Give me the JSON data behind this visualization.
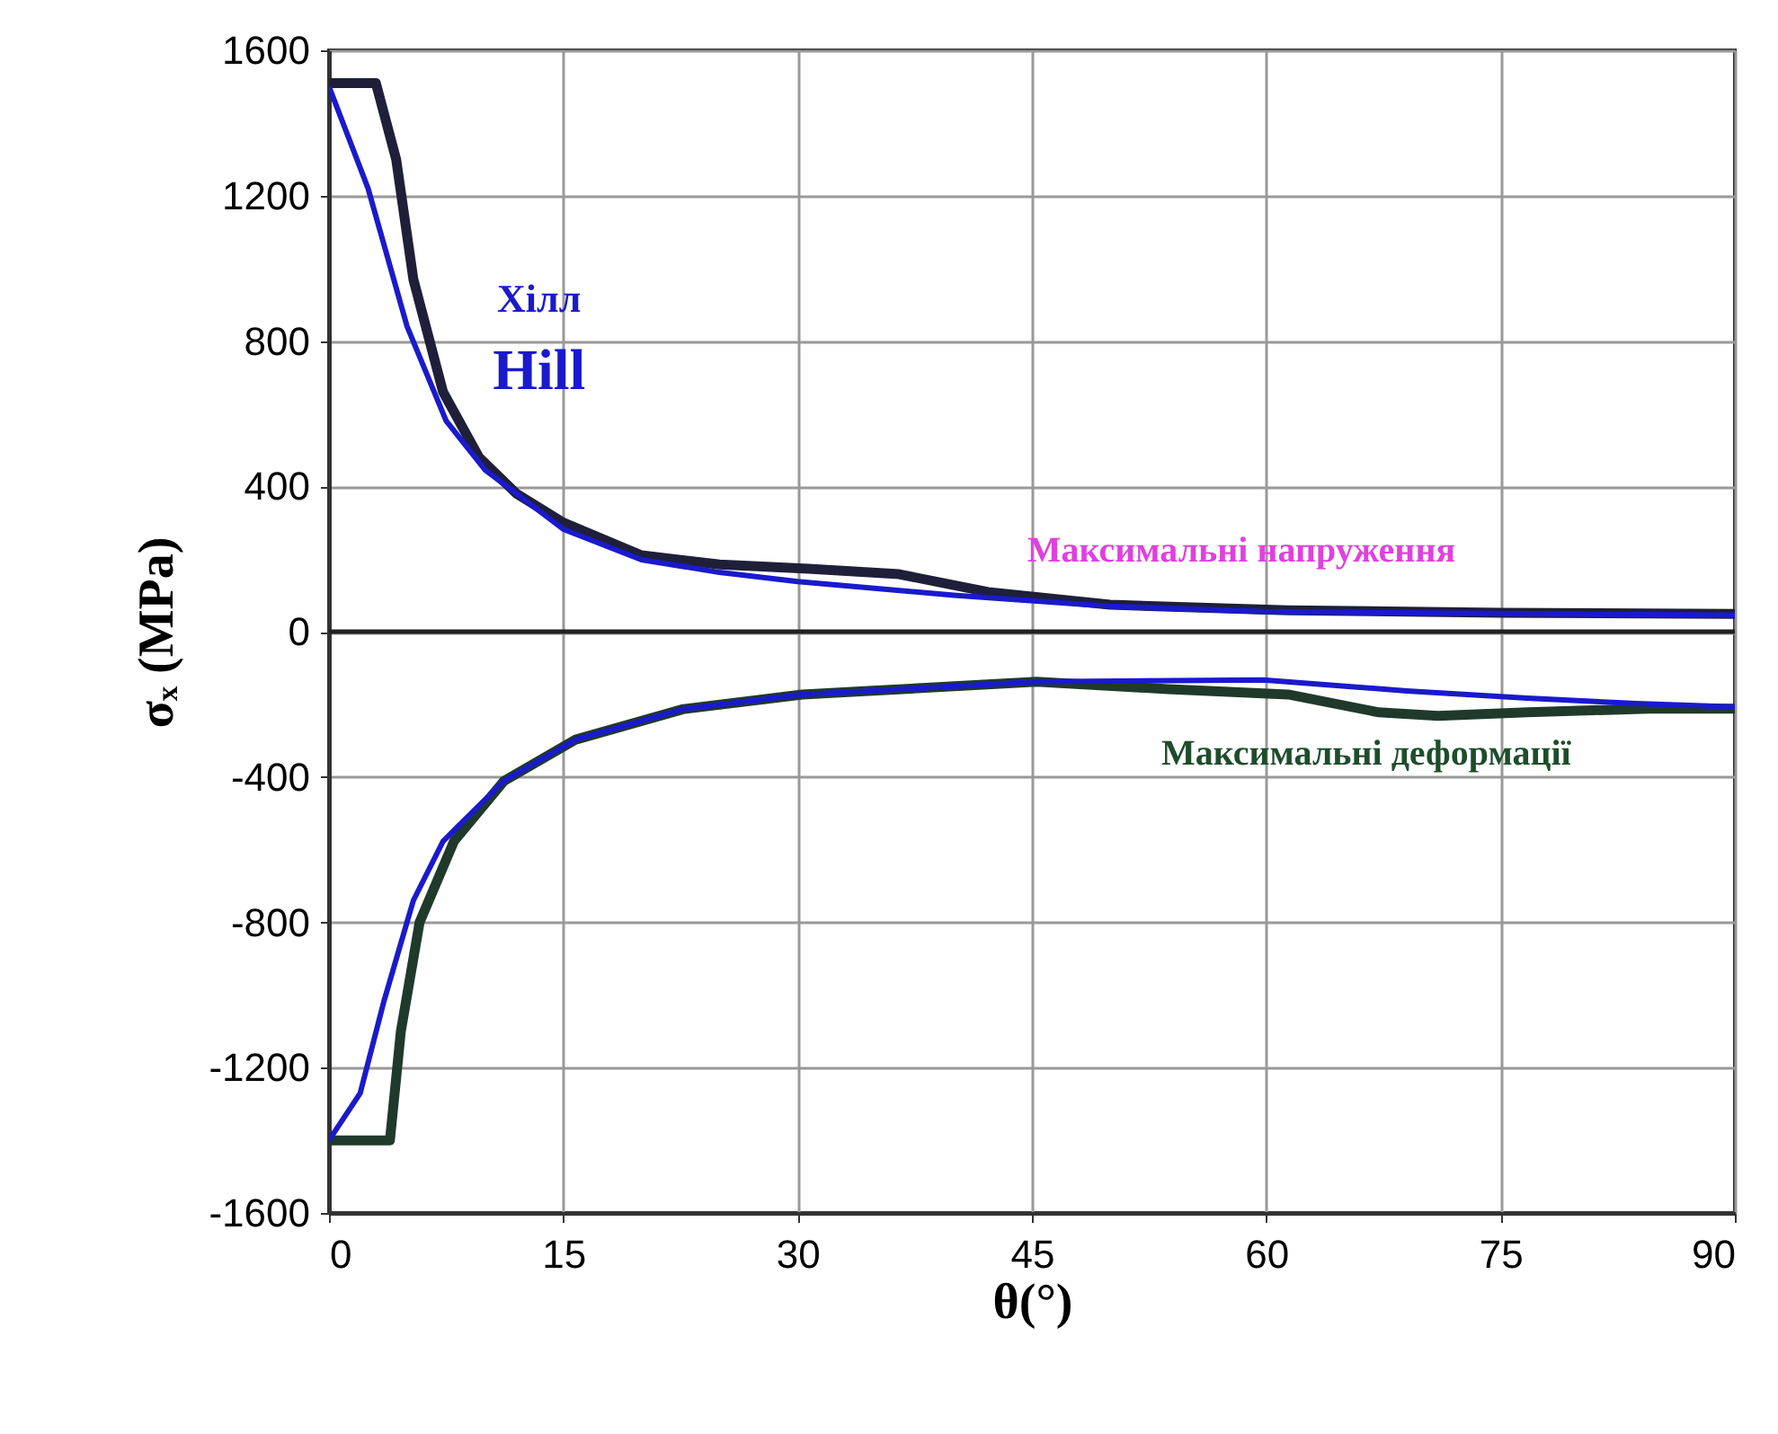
{
  "chart_data": {
    "type": "line",
    "xlabel": "θ(°)",
    "ylabel": "σₓ (MPa)",
    "xlim": [
      0,
      90
    ],
    "xticks": [
      0,
      15,
      30,
      45,
      60,
      75,
      90
    ],
    "ylim": [
      -1600,
      1600
    ],
    "yticks": [
      -1600,
      -1200,
      -800,
      -400,
      0,
      400,
      800,
      1200,
      1600
    ],
    "grid": true,
    "line_style": "solid",
    "marker": "none",
    "series": [
      {
        "color": "#1f1f3a",
        "x": [
          0,
          3,
          4.3,
          5.4,
          7.3,
          9.6,
          12,
          15,
          20,
          25,
          30.7,
          36.5,
          42.2,
          50,
          61.4,
          75,
          90
        ],
        "values": [
          1510,
          1510,
          1300,
          970,
          660,
          480,
          380,
          300,
          210,
          185,
          173,
          158,
          109,
          74,
          59,
          52,
          49
        ]
      },
      {
        "color": "#1f3a2a",
        "x": [
          0,
          3,
          3.9,
          4.6,
          5.8,
          8,
          11.2,
          15.8,
          22.7,
          30.3,
          45.3,
          53.7,
          61.4,
          67.2,
          71,
          76.7,
          84.5,
          90
        ],
        "values": [
          -1400,
          -1400,
          -1400,
          -1100,
          -800,
          -577,
          -411,
          -297,
          -213,
          -173,
          -138,
          -158,
          -173,
          -222,
          -232,
          -222,
          -212,
          -212
        ]
      },
      {
        "color": "#1a1acc",
        "x": [
          0,
          2.5,
          5,
          7.5,
          10,
          15,
          20,
          25,
          30,
          40,
          50,
          60,
          75,
          90
        ],
        "values": [
          1500,
          1220,
          840,
          580,
          445,
          282,
          198,
          163,
          138,
          100,
          70,
          55,
          50,
          45
        ]
      },
      {
        "color": "#1a1acc",
        "x": [
          0,
          2,
          3.5,
          5.4,
          7.3,
          11.2,
          15.8,
          22.7,
          30.3,
          45.3,
          59.8,
          69,
          76.7,
          83.7,
          90
        ],
        "values": [
          -1400,
          -1270,
          -1020,
          -740,
          -577,
          -411,
          -297,
          -213,
          -173,
          -138,
          -133,
          -163,
          -183,
          -198,
          -207
        ]
      }
    ],
    "ref_lines": [
      {
        "axis": "y",
        "value": 0,
        "color": "#222222"
      }
    ],
    "annotations": [
      "Хілл",
      {
        "text": "Hill",
        "x": 10,
        "y": 445
      },
      {
        "text": "Максимальні напруження",
        "x": 50,
        "y": 74
      },
      {
        "text": "Максимальні деформації",
        "x": 71,
        "y": -232
      }
    ]
  }
}
